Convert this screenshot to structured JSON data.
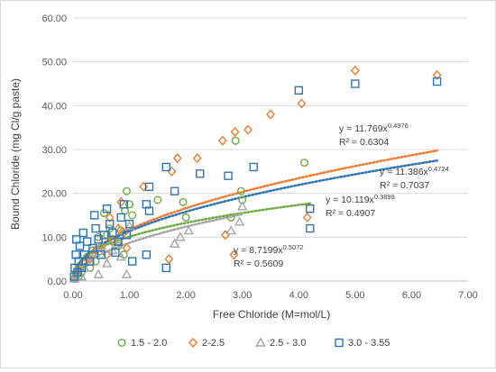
{
  "chart_data": {
    "type": "scatter",
    "title": "",
    "xlabel": "Free Chloride (M=mol/L)",
    "ylabel": "Bound Chloride (mg Cl/g paste)",
    "xlim": [
      0,
      7
    ],
    "ylim": [
      0,
      60
    ],
    "xticks": [
      "0.00",
      "1.00",
      "2.00",
      "3.00",
      "4.00",
      "5.00",
      "6.00",
      "7.00"
    ],
    "yticks": [
      "0.00",
      "10.00",
      "20.00",
      "30.00",
      "40.00",
      "50.00",
      "60.00"
    ],
    "grid": "horizontal",
    "legend_position": "bottom",
    "series": [
      {
        "name": "1.5 - 2.0",
        "color": "#70ad47",
        "marker": "circle",
        "points": [
          [
            0.02,
            0.5
          ],
          [
            0.05,
            1.5
          ],
          [
            0.08,
            2.5
          ],
          [
            0.1,
            1.0
          ],
          [
            0.12,
            3.0
          ],
          [
            0.15,
            2.0
          ],
          [
            0.2,
            4.0
          ],
          [
            0.25,
            5.5
          ],
          [
            0.3,
            3.0
          ],
          [
            0.35,
            7.0
          ],
          [
            0.4,
            4.5
          ],
          [
            0.45,
            10.0
          ],
          [
            0.5,
            7.5
          ],
          [
            0.55,
            15.5
          ],
          [
            0.6,
            10.5
          ],
          [
            0.65,
            12.0
          ],
          [
            0.7,
            9.0
          ],
          [
            0.8,
            8.0
          ],
          [
            0.85,
            11.5
          ],
          [
            0.9,
            6.0
          ],
          [
            0.92,
            16.0
          ],
          [
            0.95,
            20.5
          ],
          [
            1.0,
            17.5
          ],
          [
            1.05,
            15.0
          ],
          [
            1.5,
            18.5
          ],
          [
            1.95,
            18.0
          ],
          [
            2.0,
            14.5
          ],
          [
            2.8,
            14.5
          ],
          [
            2.88,
            32.0
          ],
          [
            2.98,
            20.5
          ],
          [
            3.0,
            18.5
          ],
          [
            4.1,
            27.0
          ]
        ]
      },
      {
        "name": "2-2.5",
        "color": "#ed7d31",
        "marker": "diamond",
        "points": [
          [
            0.05,
            1.0
          ],
          [
            0.1,
            2.5
          ],
          [
            0.2,
            4.0
          ],
          [
            0.3,
            5.0
          ],
          [
            0.4,
            7.0
          ],
          [
            0.5,
            8.0
          ],
          [
            0.6,
            6.0
          ],
          [
            0.65,
            14.5
          ],
          [
            0.7,
            9.5
          ],
          [
            0.8,
            12.0
          ],
          [
            0.85,
            18.0
          ],
          [
            0.9,
            11.0
          ],
          [
            0.95,
            7.5
          ],
          [
            1.25,
            21.5
          ],
          [
            1.7,
            5.0
          ],
          [
            1.75,
            25.0
          ],
          [
            1.85,
            28.0
          ],
          [
            2.2,
            28.0
          ],
          [
            2.7,
            10.5
          ],
          [
            2.65,
            32.0
          ],
          [
            2.85,
            6.0
          ],
          [
            2.87,
            34.0
          ],
          [
            3.1,
            34.5
          ],
          [
            3.5,
            38.0
          ],
          [
            4.05,
            40.5
          ],
          [
            4.15,
            14.5
          ],
          [
            5.0,
            48.0
          ],
          [
            6.45,
            47.0
          ]
        ]
      },
      {
        "name": "2.5 - 3.0",
        "color": "#a5a5a5",
        "marker": "triangle",
        "points": [
          [
            0.02,
            0.5
          ],
          [
            0.05,
            1.0
          ],
          [
            0.1,
            2.0
          ],
          [
            0.15,
            1.0
          ],
          [
            0.2,
            3.0
          ],
          [
            0.3,
            4.5
          ],
          [
            0.4,
            6.5
          ],
          [
            0.45,
            1.5
          ],
          [
            0.5,
            8.0
          ],
          [
            0.6,
            4.0
          ],
          [
            0.7,
            7.0
          ],
          [
            0.8,
            9.0
          ],
          [
            0.85,
            5.5
          ],
          [
            0.95,
            1.5
          ],
          [
            1.0,
            12.5
          ],
          [
            1.8,
            8.5
          ],
          [
            1.9,
            10.0
          ],
          [
            2.05,
            11.5
          ],
          [
            2.8,
            11.5
          ],
          [
            2.95,
            13.5
          ],
          [
            3.0,
            17.0
          ]
        ]
      },
      {
        "name": "3.0 - 3.55",
        "color": "#2e75b6",
        "marker": "square",
        "points": [
          [
            0.02,
            1.0
          ],
          [
            0.03,
            3.0
          ],
          [
            0.05,
            6.0
          ],
          [
            0.06,
            9.5
          ],
          [
            0.08,
            2.0
          ],
          [
            0.1,
            4.5
          ],
          [
            0.12,
            8.0
          ],
          [
            0.15,
            3.0
          ],
          [
            0.18,
            11.0
          ],
          [
            0.2,
            6.0
          ],
          [
            0.25,
            9.0
          ],
          [
            0.3,
            4.5
          ],
          [
            0.35,
            7.5
          ],
          [
            0.38,
            15.0
          ],
          [
            0.4,
            12.0
          ],
          [
            0.45,
            9.5
          ],
          [
            0.5,
            6.0
          ],
          [
            0.55,
            10.5
          ],
          [
            0.6,
            16.5
          ],
          [
            0.65,
            13.0
          ],
          [
            0.7,
            11.0
          ],
          [
            0.75,
            6.5
          ],
          [
            0.8,
            9.0
          ],
          [
            0.85,
            14.5
          ],
          [
            0.9,
            17.5
          ],
          [
            0.95,
            10.5
          ],
          [
            1.0,
            13.0
          ],
          [
            1.05,
            4.5
          ],
          [
            1.3,
            6.0
          ],
          [
            1.3,
            17.5
          ],
          [
            1.35,
            16.0
          ],
          [
            1.35,
            21.5
          ],
          [
            1.65,
            3.0
          ],
          [
            1.65,
            26.0
          ],
          [
            1.8,
            20.5
          ],
          [
            2.25,
            24.5
          ],
          [
            2.75,
            24.0
          ],
          [
            3.2,
            26.0
          ],
          [
            4.0,
            43.5
          ],
          [
            4.2,
            16.5
          ],
          [
            4.2,
            12.0
          ],
          [
            5.0,
            45.0
          ],
          [
            6.45,
            45.5
          ]
        ]
      }
    ],
    "trendlines": [
      {
        "series": "1.5 - 2.0",
        "a": 10.119,
        "b": 0.3898,
        "x_range": [
          0.05,
          4.2
        ],
        "equation": "y = 10.119x",
        "exponent": "0.3898",
        "r2": "R² = 0.4907"
      },
      {
        "series": "2-2.5",
        "a": 11.769,
        "b": 0.4976,
        "x_range": [
          0.05,
          6.45
        ],
        "equation": "y = 11.769x",
        "exponent": "0.4976",
        "r2": "R² = 0.6304"
      },
      {
        "series": "2.5 - 3.0",
        "a": 8.7199,
        "b": 0.5072,
        "x_range": [
          0.05,
          3.0
        ],
        "equation": "y = 8.7199x",
        "exponent": "0.5072",
        "r2": "R² = 0.5609"
      },
      {
        "series": "3.0 - 3.55",
        "a": 11.386,
        "b": 0.4724,
        "x_range": [
          0.05,
          6.45
        ],
        "equation": "y = 11.386x",
        "exponent": "0.4724",
        "r2": "R² = 0.7037"
      }
    ]
  }
}
